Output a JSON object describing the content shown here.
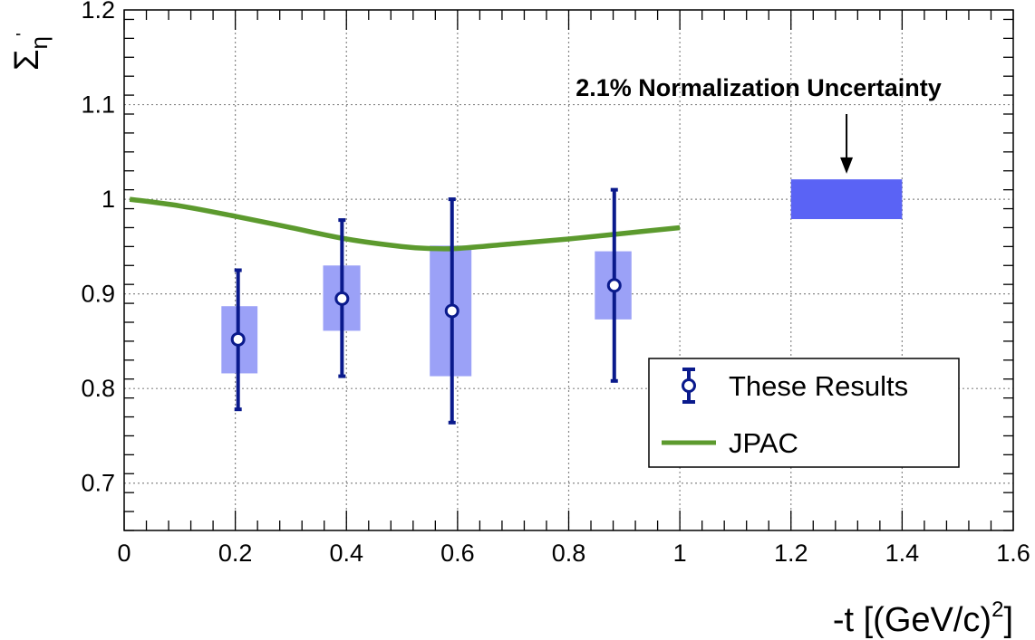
{
  "chart_data": {
    "type": "scatter",
    "title": "",
    "xlabel": "-t [(GeV/c)",
    "xlabel_sup": "2",
    "xlabel_close": "]",
    "ylabel_main": "Σ",
    "ylabel_sub": "η",
    "ylabel_prime": "'",
    "xlim": [
      0,
      1.6
    ],
    "ylim": [
      0.65,
      1.2
    ],
    "grid": true,
    "legend_position": "bottom-right",
    "x_ticks": [
      0,
      0.2,
      0.4,
      0.6,
      0.8,
      1,
      1.2,
      1.4,
      1.6
    ],
    "x_tick_labels": [
      "0",
      "0.2",
      "0.4",
      "0.6",
      "0.8",
      "1",
      "1.2",
      "1.4",
      "1.6"
    ],
    "y_ticks": [
      0.7,
      0.8,
      0.9,
      1.0,
      1.1,
      1.2
    ],
    "y_tick_labels": [
      "0.7",
      "0.8",
      "0.9",
      "1",
      "1.1",
      "1.2"
    ],
    "series": [
      {
        "name": "These Results",
        "type": "scatter",
        "color": "#0a1a8c",
        "points": [
          {
            "x": 0.205,
            "y": 0.852,
            "err_low": 0.778,
            "err_high": 0.925,
            "sys_low": 0.816,
            "sys_high": 0.887,
            "sys_xlow": 0.175,
            "sys_xhigh": 0.24
          },
          {
            "x": 0.392,
            "y": 0.895,
            "err_low": 0.813,
            "err_high": 0.978,
            "sys_low": 0.861,
            "sys_high": 0.93,
            "sys_xlow": 0.358,
            "sys_xhigh": 0.425
          },
          {
            "x": 0.59,
            "y": 0.882,
            "err_low": 0.764,
            "err_high": 1.0,
            "sys_low": 0.813,
            "sys_high": 0.951,
            "sys_xlow": 0.55,
            "sys_xhigh": 0.625
          },
          {
            "x": 0.882,
            "y": 0.909,
            "err_low": 0.808,
            "err_high": 1.01,
            "sys_low": 0.873,
            "sys_high": 0.945,
            "sys_xlow": 0.847,
            "sys_xhigh": 0.913
          }
        ]
      },
      {
        "name": "JPAC",
        "type": "line",
        "color": "#5c9a2e",
        "x": [
          0.01,
          0.1,
          0.2,
          0.3,
          0.4,
          0.5,
          0.55,
          0.6,
          0.7,
          0.8,
          0.9,
          1.0
        ],
        "y": [
          1.0,
          0.993,
          0.982,
          0.97,
          0.958,
          0.95,
          0.948,
          0.948,
          0.953,
          0.958,
          0.964,
          0.97
        ]
      }
    ],
    "normalization_band": {
      "x0": 1.2,
      "x1": 1.4,
      "y0": 0.979,
      "y1": 1.021,
      "color": "#5a63f5"
    },
    "annotation": {
      "text": "2.1% Normalization Uncertainty",
      "arrow_x": 1.3,
      "arrow_y_from": 1.09,
      "arrow_y_to": 1.027
    }
  }
}
